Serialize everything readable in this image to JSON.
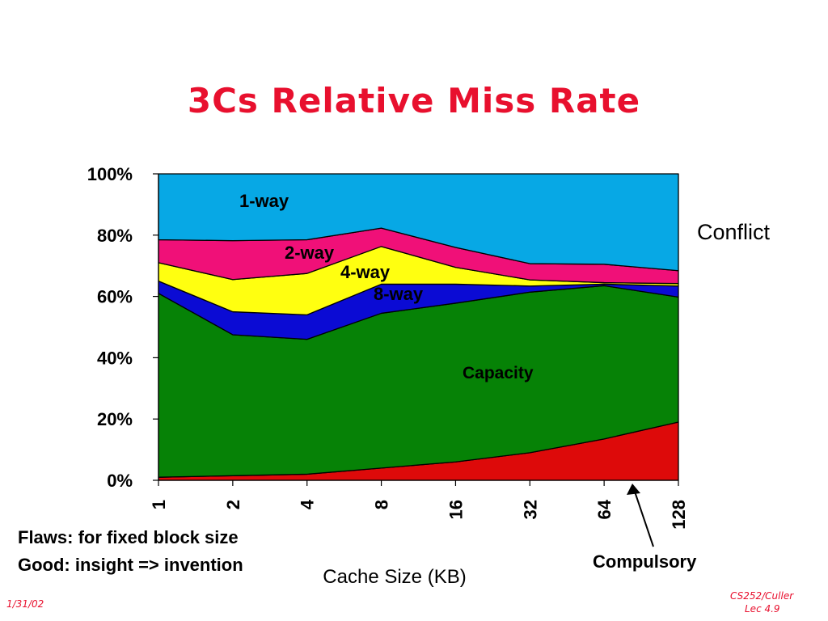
{
  "slide": {
    "title": "3Cs Relative Miss Rate",
    "notes": [
      "Flaws: for fixed block size",
      "Good: insight => invention"
    ],
    "footer_left": "1/31/02",
    "footer_right": [
      "CS252/Culler",
      "Lec 4.9"
    ]
  },
  "chart_data": {
    "type": "area",
    "stacked": true,
    "xlabel": "Cache Size (KB)",
    "ylabel": "",
    "categories": [
      "1",
      "2",
      "4",
      "8",
      "16",
      "32",
      "64",
      "128"
    ],
    "ylim": [
      0,
      100
    ],
    "yticks": [
      "0%",
      "20%",
      "40%",
      "60%",
      "80%",
      "100%"
    ],
    "series": [
      {
        "name": "Compulsory",
        "color": "#dd0a0a",
        "values": [
          1,
          1.5,
          2,
          4,
          6,
          9,
          13.5,
          19
        ]
      },
      {
        "name": "Capacity",
        "color": "#068206",
        "values": [
          60,
          46,
          44,
          50.5,
          51.8,
          52.4,
          50,
          40.8
        ]
      },
      {
        "name": "8-way",
        "color": "#0b0bd4",
        "values": [
          4,
          7.5,
          8,
          9.5,
          6.2,
          2,
          0.5,
          3.6
        ]
      },
      {
        "name": "4-way",
        "color": "#ffff10",
        "values": [
          6,
          10.5,
          13.5,
          12.3,
          5.5,
          2,
          0.5,
          0.8
        ]
      },
      {
        "name": "2-way",
        "color": "#f01078",
        "values": [
          7.5,
          12.7,
          11,
          6,
          6.5,
          5.3,
          6,
          4.2
        ]
      },
      {
        "name": "1-way",
        "color": "#07a8e5",
        "values": [
          21.5,
          21.8,
          21.5,
          17.7,
          24,
          29.3,
          29.5,
          31.6
        ]
      }
    ],
    "series_labels": {
      "1-way": "1-way",
      "2-way": "2-way",
      "4-way": "4-way",
      "8-way": "8-way",
      "capacity": "Capacity",
      "conflict": "Conflict",
      "compulsory": "Compulsory"
    }
  }
}
